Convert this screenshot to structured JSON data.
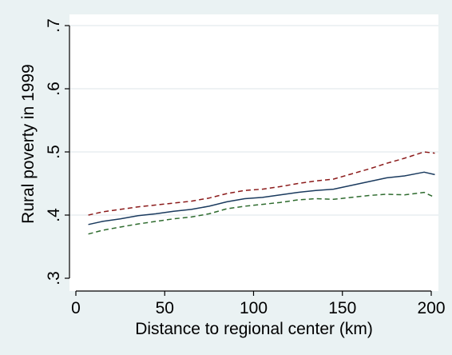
{
  "chart_data": {
    "type": "line",
    "title": "",
    "xlabel": "Distance to regional center (km)",
    "ylabel": "Rural poverty in 1999",
    "xlim": [
      0,
      200
    ],
    "ylim": [
      0.3,
      0.7
    ],
    "xticks": [
      {
        "value": 0,
        "label": "0"
      },
      {
        "value": 50,
        "label": "50"
      },
      {
        "value": 100,
        "label": "100"
      },
      {
        "value": 150,
        "label": "150"
      },
      {
        "value": 200,
        "label": "200"
      }
    ],
    "yticks": [
      {
        "value": 0.3,
        "label": ".3"
      },
      {
        "value": 0.4,
        "label": ".4"
      },
      {
        "value": 0.5,
        "label": ".5"
      },
      {
        "value": 0.6,
        "label": ".6"
      },
      {
        "value": 0.7,
        "label": ".7"
      }
    ],
    "grid": true,
    "legend": "none",
    "x": [
      7,
      15,
      25,
      35,
      45,
      55,
      65,
      75,
      85,
      95,
      105,
      115,
      125,
      135,
      145,
      155,
      165,
      175,
      185,
      196,
      202
    ],
    "series": [
      {
        "name": "",
        "style": "solid",
        "color": "#1a3a5e",
        "values": [
          0.385,
          0.39,
          0.394,
          0.399,
          0.402,
          0.406,
          0.409,
          0.414,
          0.421,
          0.426,
          0.428,
          0.432,
          0.436,
          0.439,
          0.441,
          0.447,
          0.453,
          0.459,
          0.462,
          0.468,
          0.464
        ]
      },
      {
        "name": "",
        "style": "dashed",
        "color": "#8b1a1a",
        "values": [
          0.4,
          0.405,
          0.409,
          0.413,
          0.416,
          0.419,
          0.422,
          0.427,
          0.434,
          0.439,
          0.441,
          0.445,
          0.45,
          0.454,
          0.457,
          0.465,
          0.473,
          0.482,
          0.49,
          0.5,
          0.498
        ]
      },
      {
        "name": "",
        "style": "dashed",
        "color": "#2e6b2e",
        "values": [
          0.37,
          0.376,
          0.381,
          0.386,
          0.39,
          0.394,
          0.397,
          0.402,
          0.41,
          0.414,
          0.417,
          0.42,
          0.424,
          0.426,
          0.425,
          0.428,
          0.431,
          0.433,
          0.432,
          0.436,
          0.428
        ]
      }
    ],
    "colors": {
      "background": "#eaf2f3",
      "plot_background": "#ffffff",
      "gridline": "#e3eaee",
      "axis": "#000000"
    }
  }
}
